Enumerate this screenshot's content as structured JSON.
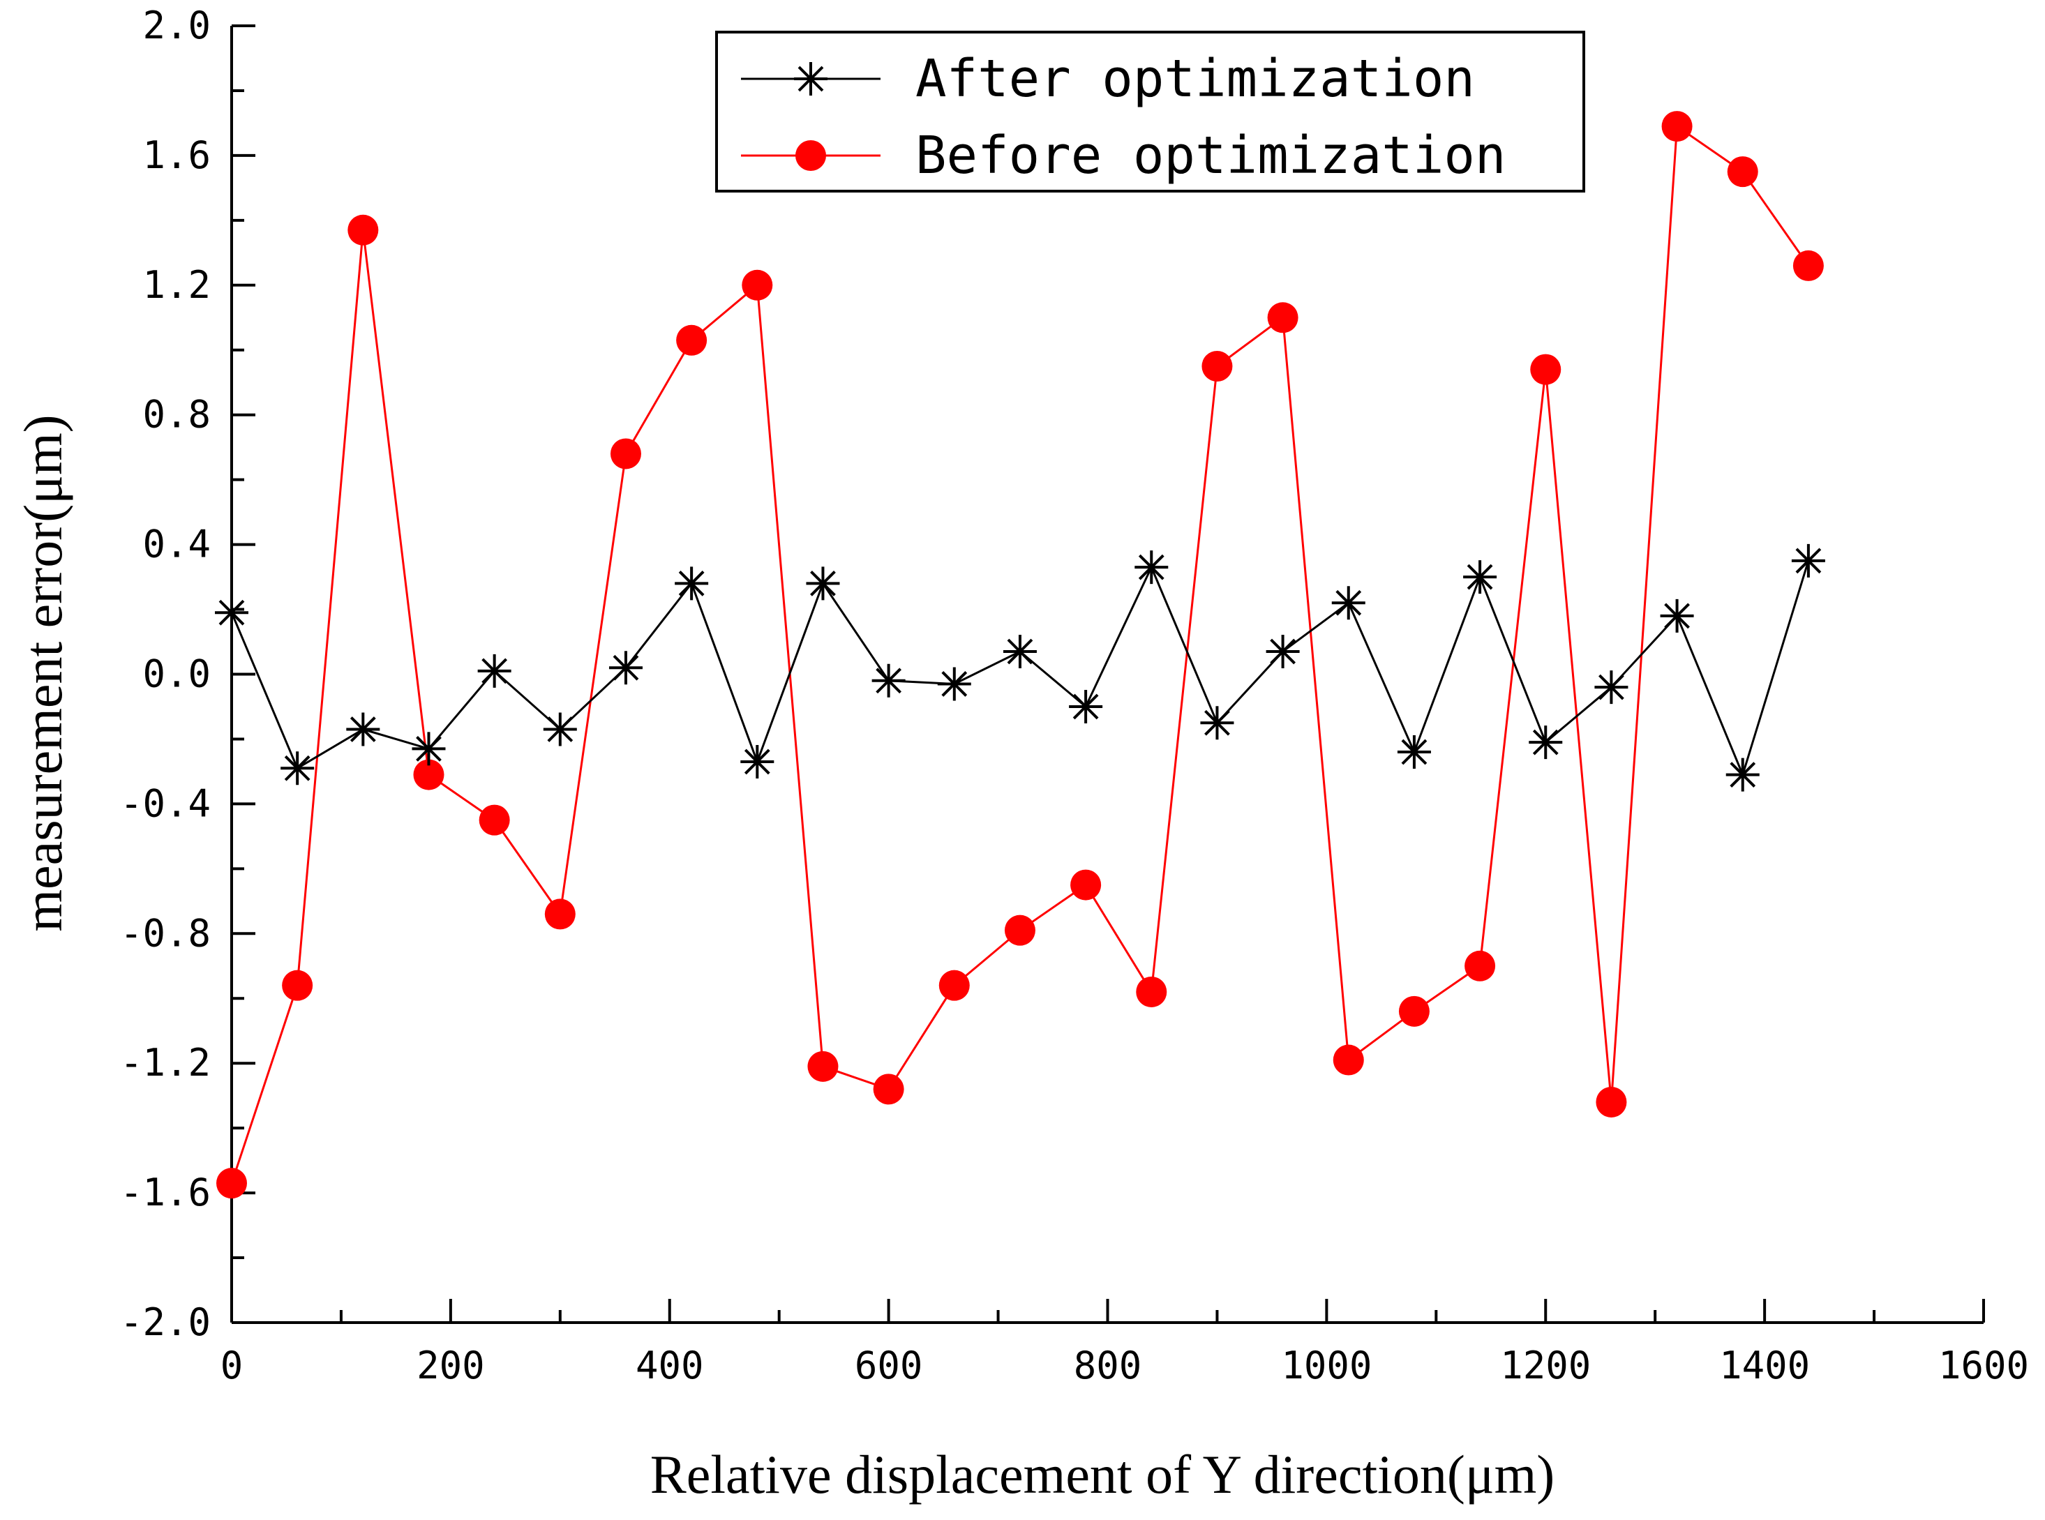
{
  "chart_data": {
    "type": "line",
    "title": "",
    "xlabel": "Relative displacement of Y direction(μm)",
    "ylabel": "measurement error(μm)",
    "xlim": [
      0,
      1600
    ],
    "ylim": [
      -2.0,
      2.0
    ],
    "x_ticks": [
      "0",
      "200",
      "400",
      "600",
      "800",
      "1000",
      "1200",
      "1400",
      "1600"
    ],
    "y_ticks": [
      "-2.0",
      "-1.6",
      "-1.2",
      "-0.8",
      "-0.4",
      "0.0",
      "0.4",
      "0.8",
      "1.2",
      "1.6",
      "2.0"
    ],
    "legend_position": "top-right",
    "x": [
      0,
      60,
      120,
      180,
      240,
      300,
      360,
      420,
      480,
      540,
      600,
      660,
      720,
      780,
      840,
      900,
      960,
      1020,
      1080,
      1140,
      1200,
      1260,
      1320,
      1380,
      1440
    ],
    "series": [
      {
        "name": "After optimization",
        "color": "#000000",
        "marker": "asterisk",
        "values": [
          0.19,
          -0.29,
          -0.17,
          -0.23,
          0.01,
          -0.17,
          0.02,
          0.28,
          -0.27,
          0.28,
          -0.02,
          -0.03,
          0.07,
          -0.1,
          0.33,
          -0.15,
          0.07,
          0.22,
          -0.24,
          0.3,
          -0.21,
          -0.04,
          0.18,
          -0.31,
          0.35
        ]
      },
      {
        "name": "Before optimization",
        "color": "#ff0000",
        "marker": "circle",
        "values": [
          -1.57,
          -0.96,
          1.37,
          -0.31,
          -0.45,
          -0.74,
          0.68,
          1.03,
          1.2,
          -1.21,
          -1.28,
          -0.96,
          -0.79,
          -0.65,
          -0.98,
          0.95,
          1.1,
          -1.19,
          -1.04,
          -0.9,
          0.94,
          -1.32,
          1.69,
          1.55,
          1.26
        ]
      }
    ]
  }
}
